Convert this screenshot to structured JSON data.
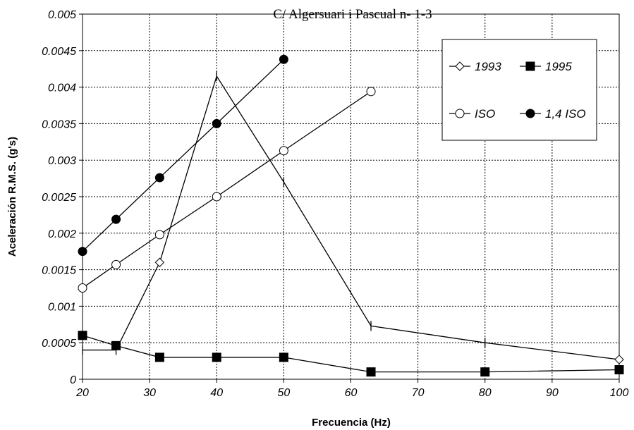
{
  "chart_data": {
    "type": "line",
    "title": "C/ Algersuari i Pascual n- 1-3",
    "xlabel": "Frecuencia (Hz)",
    "ylabel": "Aceleración R.M.S. (g's)",
    "xlim": [
      20,
      100
    ],
    "ylim": [
      0,
      0.005
    ],
    "x_ticks": [
      "20",
      "30",
      "40",
      "50",
      "60",
      "70",
      "80",
      "90",
      "100"
    ],
    "y_ticks": [
      "0",
      "0.0005",
      "0.001",
      "0.0015",
      "0.002",
      "0.0025",
      "0.003",
      "0.0035",
      "0.004",
      "0.0045",
      "0.005"
    ],
    "grid": true,
    "legend_position": "top-right",
    "series": [
      {
        "name": "1993",
        "marker": "diamond-open",
        "x": [
          20,
          25,
          31.5,
          40,
          50,
          63,
          80,
          100
        ],
        "y": [
          0.0004,
          0.0004,
          0.0016,
          0.00415,
          0.0027,
          0.00073,
          0.0005,
          0.00027
        ]
      },
      {
        "name": "1995",
        "marker": "square-filled",
        "x": [
          20,
          25,
          31.5,
          40,
          50,
          63,
          80,
          100
        ],
        "y": [
          0.0006,
          0.00046,
          0.0003,
          0.0003,
          0.0003,
          0.0001,
          0.0001,
          0.00013
        ]
      },
      {
        "name": "ISO",
        "marker": "circle-open",
        "x": [
          20,
          25,
          31.5,
          40,
          50,
          63
        ],
        "y": [
          0.00125,
          0.00157,
          0.00198,
          0.0025,
          0.00313,
          0.00394
        ]
      },
      {
        "name": "1,4 ISO",
        "marker": "circle-filled",
        "x": [
          20,
          25,
          31.5,
          40,
          50
        ],
        "y": [
          0.00175,
          0.00219,
          0.00276,
          0.0035,
          0.00438
        ]
      }
    ]
  }
}
